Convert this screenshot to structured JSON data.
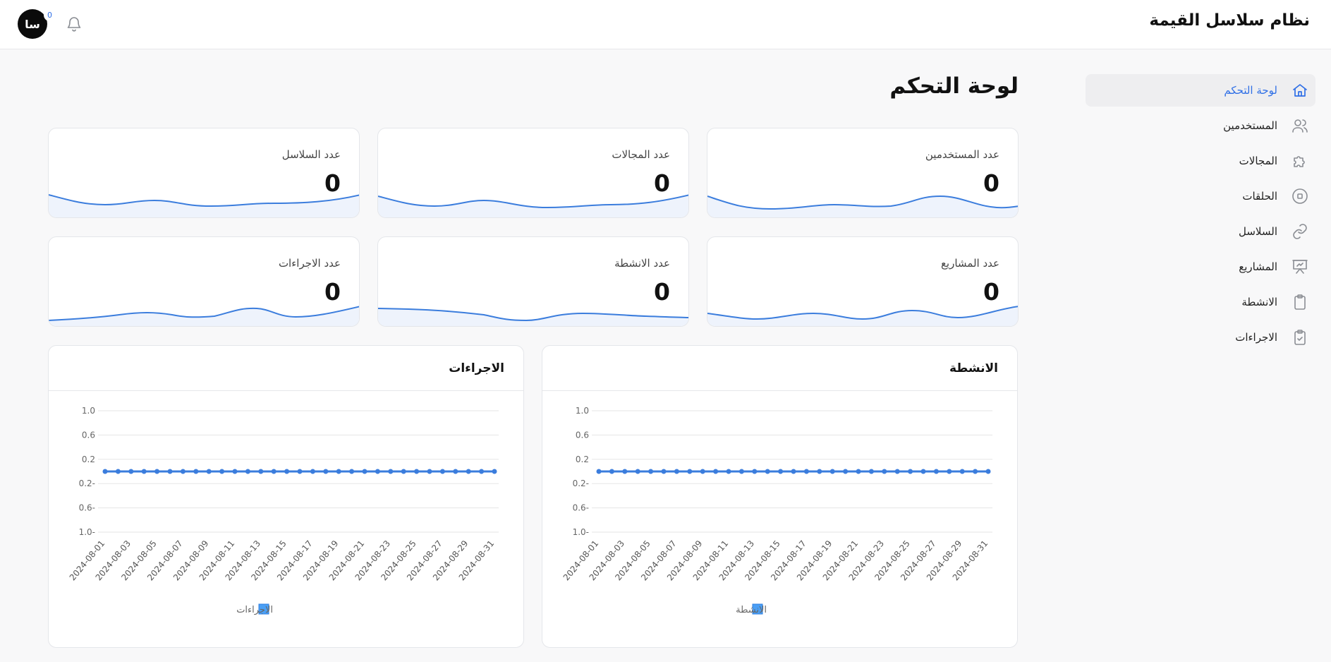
{
  "header": {
    "app_title": "نظام سلاسل القيمة",
    "avatar_text": "سا",
    "notification_count": "0"
  },
  "sidebar": {
    "items": [
      {
        "label": "لوحة التحكم",
        "icon": "home-icon",
        "active": true
      },
      {
        "label": "المستخدمين",
        "icon": "users-icon"
      },
      {
        "label": "المجالات",
        "icon": "puzzle-icon"
      },
      {
        "label": "الحلقات",
        "icon": "circle-stop-icon"
      },
      {
        "label": "السلاسل",
        "icon": "link-icon"
      },
      {
        "label": "المشاريع",
        "icon": "presentation-icon"
      },
      {
        "label": "الانشطة",
        "icon": "clipboard-icon"
      },
      {
        "label": "الاجراءات",
        "icon": "clipboard-check-icon"
      }
    ]
  },
  "main": {
    "page_title": "لوحة التحكم",
    "stats": [
      {
        "label": "عدد المستخدمين",
        "value": "0"
      },
      {
        "label": "عدد المجالات",
        "value": "0"
      },
      {
        "label": "عدد السلاسل",
        "value": "0"
      },
      {
        "label": "عدد المشاريع",
        "value": "0"
      },
      {
        "label": "عدد الانشطة",
        "value": "0"
      },
      {
        "label": "عدد الاجراءات",
        "value": "0"
      }
    ]
  },
  "colors": {
    "accent": "#2f6fe6",
    "line": "#3b7ddd",
    "sparkline_fill": "#eef3fc",
    "grid": "#e5e5e5",
    "legend": "#4a9ff5"
  },
  "chart_data": [
    {
      "type": "line",
      "title": "الانشطة",
      "legend": "الانشطة",
      "x": [
        "2024-08-01",
        "2024-08-02",
        "2024-08-03",
        "2024-08-04",
        "2024-08-05",
        "2024-08-06",
        "2024-08-07",
        "2024-08-08",
        "2024-08-09",
        "2024-08-10",
        "2024-08-11",
        "2024-08-12",
        "2024-08-13",
        "2024-08-14",
        "2024-08-15",
        "2024-08-16",
        "2024-08-17",
        "2024-08-18",
        "2024-08-19",
        "2024-08-20",
        "2024-08-21",
        "2024-08-22",
        "2024-08-23",
        "2024-08-24",
        "2024-08-25",
        "2024-08-26",
        "2024-08-27",
        "2024-08-28",
        "2024-08-29",
        "2024-08-30",
        "2024-08-31"
      ],
      "x_tick_labels": [
        "2024-08-01",
        "2024-08-03",
        "2024-08-05",
        "2024-08-07",
        "2024-08-09",
        "2024-08-11",
        "2024-08-13",
        "2024-08-15",
        "2024-08-17",
        "2024-08-19",
        "2024-08-21",
        "2024-08-23",
        "2024-08-25",
        "2024-08-27",
        "2024-08-29",
        "2024-08-31"
      ],
      "values": [
        0,
        0,
        0,
        0,
        0,
        0,
        0,
        0,
        0,
        0,
        0,
        0,
        0,
        0,
        0,
        0,
        0,
        0,
        0,
        0,
        0,
        0,
        0,
        0,
        0,
        0,
        0,
        0,
        0,
        0,
        0
      ],
      "ylim": [
        -1.0,
        1.0
      ],
      "y_ticks": [
        1.0,
        0.6,
        0.2,
        -0.2,
        -0.6,
        -1.0
      ],
      "y_tick_labels": [
        "1.0",
        "0.6",
        "0.2",
        "0.2-",
        "0.6-",
        "1.0-"
      ],
      "grid": true,
      "legend_position": "bottom"
    },
    {
      "type": "line",
      "title": "الاجراءات",
      "legend": "الاجراءات",
      "x": [
        "2024-08-01",
        "2024-08-02",
        "2024-08-03",
        "2024-08-04",
        "2024-08-05",
        "2024-08-06",
        "2024-08-07",
        "2024-08-08",
        "2024-08-09",
        "2024-08-10",
        "2024-08-11",
        "2024-08-12",
        "2024-08-13",
        "2024-08-14",
        "2024-08-15",
        "2024-08-16",
        "2024-08-17",
        "2024-08-18",
        "2024-08-19",
        "2024-08-20",
        "2024-08-21",
        "2024-08-22",
        "2024-08-23",
        "2024-08-24",
        "2024-08-25",
        "2024-08-26",
        "2024-08-27",
        "2024-08-28",
        "2024-08-29",
        "2024-08-30",
        "2024-08-31"
      ],
      "x_tick_labels": [
        "2024-08-01",
        "2024-08-03",
        "2024-08-05",
        "2024-08-07",
        "2024-08-09",
        "2024-08-11",
        "2024-08-13",
        "2024-08-15",
        "2024-08-17",
        "2024-08-19",
        "2024-08-21",
        "2024-08-23",
        "2024-08-25",
        "2024-08-27",
        "2024-08-29",
        "2024-08-31"
      ],
      "values": [
        0,
        0,
        0,
        0,
        0,
        0,
        0,
        0,
        0,
        0,
        0,
        0,
        0,
        0,
        0,
        0,
        0,
        0,
        0,
        0,
        0,
        0,
        0,
        0,
        0,
        0,
        0,
        0,
        0,
        0,
        0
      ],
      "ylim": [
        -1.0,
        1.0
      ],
      "y_ticks": [
        1.0,
        0.6,
        0.2,
        -0.2,
        -0.6,
        -1.0
      ],
      "y_tick_labels": [
        "1.0",
        "0.6",
        "0.2",
        "0.2-",
        "0.6-",
        "1.0-"
      ],
      "grid": true,
      "legend_position": "bottom"
    }
  ]
}
